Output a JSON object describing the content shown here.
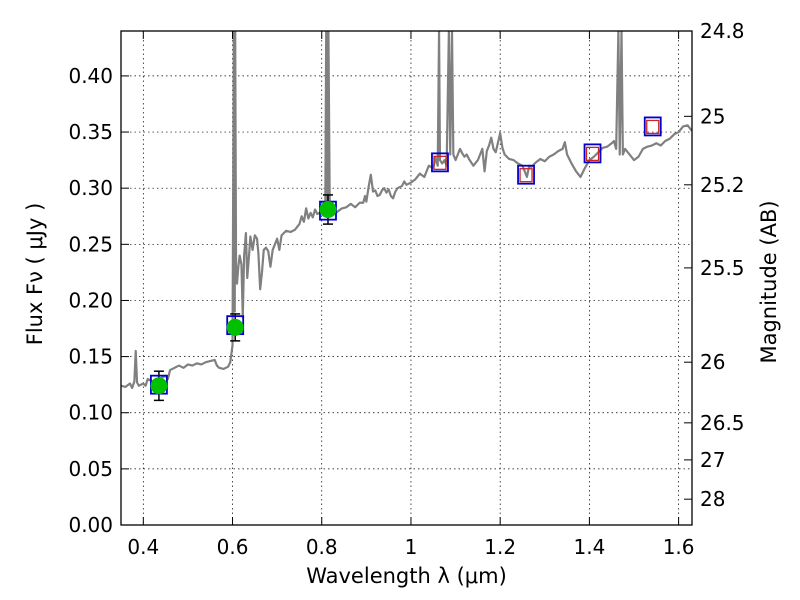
{
  "chart_data": {
    "type": "line",
    "xlabel": "Wavelength  λ (μm)",
    "ylabel": "Flux  Fν  ( μJy )",
    "y2label": "Magnitude (AB)",
    "xlim": [
      0.35,
      1.63
    ],
    "ylim": [
      0.0,
      0.44
    ],
    "x_ticks": [
      0.4,
      0.6,
      0.8,
      1.0,
      1.2,
      1.4,
      1.6
    ],
    "x_tick_labels": [
      "0.4",
      "0.6",
      "0.8",
      "1",
      "1.2",
      "1.4",
      "1.6"
    ],
    "y_ticks": [
      0.0,
      0.05,
      0.1,
      0.15,
      0.2,
      0.25,
      0.3,
      0.35,
      0.4
    ],
    "y_tick_labels": [
      "0.00",
      "0.05",
      "0.10",
      "0.15",
      "0.20",
      "0.25",
      "0.30",
      "0.35",
      "0.40"
    ],
    "y2_ticks": [
      {
        "label": "24.8",
        "flux": 0.44
      },
      {
        "label": "25",
        "flux": 0.364
      },
      {
        "label": "25.2",
        "flux": 0.303
      },
      {
        "label": "25.5",
        "flux": 0.229
      },
      {
        "label": "26",
        "flux": 0.145
      },
      {
        "label": "26.5",
        "flux": 0.091
      },
      {
        "label": "27",
        "flux": 0.058
      },
      {
        "label": "28",
        "flux": 0.023
      }
    ],
    "grid": true,
    "colors": {
      "spectrum": "#808080",
      "measured": "#00c000",
      "model_box": "#0000cc",
      "model_box_inner": "#cc2222",
      "errorbar": "#000000"
    },
    "series": [
      {
        "kind": "line",
        "points": [
          [
            0.35,
            0.124
          ],
          [
            0.36,
            0.123
          ],
          [
            0.37,
            0.126
          ],
          [
            0.375,
            0.122
          ],
          [
            0.38,
            0.128
          ],
          [
            0.383,
            0.155
          ],
          [
            0.386,
            0.127
          ],
          [
            0.39,
            0.124
          ],
          [
            0.4,
            0.126
          ],
          [
            0.405,
            0.124
          ],
          [
            0.41,
            0.13
          ],
          [
            0.42,
            0.128
          ],
          [
            0.43,
            0.129
          ],
          [
            0.44,
            0.131
          ],
          [
            0.45,
            0.133
          ],
          [
            0.455,
            0.13
          ],
          [
            0.46,
            0.138
          ],
          [
            0.47,
            0.14
          ],
          [
            0.48,
            0.142
          ],
          [
            0.49,
            0.14
          ],
          [
            0.5,
            0.143
          ],
          [
            0.51,
            0.142
          ],
          [
            0.52,
            0.144
          ],
          [
            0.53,
            0.143
          ],
          [
            0.54,
            0.145
          ],
          [
            0.55,
            0.146
          ],
          [
            0.56,
            0.147
          ],
          [
            0.565,
            0.142
          ],
          [
            0.57,
            0.14
          ],
          [
            0.58,
            0.139
          ],
          [
            0.59,
            0.141
          ],
          [
            0.595,
            0.145
          ],
          [
            0.6,
            0.16
          ],
          [
            0.603,
            0.44
          ],
          [
            0.605,
            0.19
          ],
          [
            0.606,
            0.44
          ],
          [
            0.608,
            0.22
          ],
          [
            0.61,
            0.215
          ],
          [
            0.613,
            0.23
          ],
          [
            0.616,
            0.24
          ],
          [
            0.62,
            0.232
          ],
          [
            0.623,
            0.185
          ],
          [
            0.626,
            0.24
          ],
          [
            0.63,
            0.26
          ],
          [
            0.633,
            0.22
          ],
          [
            0.637,
            0.24
          ],
          [
            0.64,
            0.257
          ],
          [
            0.645,
            0.245
          ],
          [
            0.65,
            0.258
          ],
          [
            0.655,
            0.255
          ],
          [
            0.658,
            0.242
          ],
          [
            0.662,
            0.21
          ],
          [
            0.666,
            0.225
          ],
          [
            0.67,
            0.245
          ],
          [
            0.675,
            0.247
          ],
          [
            0.68,
            0.244
          ],
          [
            0.685,
            0.23
          ],
          [
            0.69,
            0.245
          ],
          [
            0.695,
            0.25
          ],
          [
            0.7,
            0.255
          ],
          [
            0.705,
            0.245
          ],
          [
            0.71,
            0.258
          ],
          [
            0.72,
            0.262
          ],
          [
            0.73,
            0.261
          ],
          [
            0.74,
            0.263
          ],
          [
            0.75,
            0.268
          ],
          [
            0.755,
            0.275
          ],
          [
            0.76,
            0.27
          ],
          [
            0.765,
            0.282
          ],
          [
            0.77,
            0.273
          ],
          [
            0.775,
            0.278
          ],
          [
            0.78,
            0.274
          ],
          [
            0.785,
            0.281
          ],
          [
            0.79,
            0.277
          ],
          [
            0.8,
            0.279
          ],
          [
            0.805,
            0.284
          ],
          [
            0.808,
            0.283
          ],
          [
            0.81,
            0.44
          ],
          [
            0.813,
            0.283
          ],
          [
            0.815,
            0.44
          ],
          [
            0.818,
            0.28
          ],
          [
            0.825,
            0.276
          ],
          [
            0.835,
            0.279
          ],
          [
            0.845,
            0.282
          ],
          [
            0.855,
            0.283
          ],
          [
            0.865,
            0.286
          ],
          [
            0.875,
            0.283
          ],
          [
            0.885,
            0.287
          ],
          [
            0.893,
            0.287
          ],
          [
            0.897,
            0.293
          ],
          [
            0.9,
            0.288
          ],
          [
            0.905,
            0.301
          ],
          [
            0.91,
            0.312
          ],
          [
            0.915,
            0.297
          ],
          [
            0.92,
            0.298
          ],
          [
            0.925,
            0.293
          ],
          [
            0.93,
            0.294
          ],
          [
            0.935,
            0.298
          ],
          [
            0.94,
            0.3
          ],
          [
            0.945,
            0.296
          ],
          [
            0.95,
            0.299
          ],
          [
            0.955,
            0.293
          ],
          [
            0.96,
            0.291
          ],
          [
            0.965,
            0.297
          ],
          [
            0.97,
            0.3
          ],
          [
            0.98,
            0.302
          ],
          [
            0.985,
            0.306
          ],
          [
            0.99,
            0.303
          ],
          [
            1.0,
            0.305
          ],
          [
            1.01,
            0.308
          ],
          [
            1.02,
            0.313
          ],
          [
            1.03,
            0.31
          ],
          [
            1.04,
            0.32
          ],
          [
            1.05,
            0.318
          ],
          [
            1.055,
            0.327
          ],
          [
            1.06,
            0.32
          ],
          [
            1.063,
            0.44
          ],
          [
            1.065,
            0.325
          ],
          [
            1.07,
            0.322
          ],
          [
            1.075,
            0.325
          ],
          [
            1.08,
            0.32
          ],
          [
            1.085,
            0.44
          ],
          [
            1.088,
            0.33
          ],
          [
            1.092,
            0.44
          ],
          [
            1.095,
            0.33
          ],
          [
            1.1,
            0.325
          ],
          [
            1.105,
            0.33
          ],
          [
            1.11,
            0.335
          ],
          [
            1.115,
            0.331
          ],
          [
            1.12,
            0.328
          ],
          [
            1.125,
            0.33
          ],
          [
            1.13,
            0.326
          ],
          [
            1.14,
            0.32
          ],
          [
            1.15,
            0.325
          ],
          [
            1.155,
            0.33
          ],
          [
            1.16,
            0.335
          ],
          [
            1.165,
            0.315
          ],
          [
            1.17,
            0.333
          ],
          [
            1.175,
            0.338
          ],
          [
            1.18,
            0.345
          ],
          [
            1.185,
            0.335
          ],
          [
            1.19,
            0.332
          ],
          [
            1.2,
            0.349
          ],
          [
            1.205,
            0.336
          ],
          [
            1.21,
            0.33
          ],
          [
            1.22,
            0.326
          ],
          [
            1.23,
            0.325
          ],
          [
            1.24,
            0.322
          ],
          [
            1.25,
            0.32
          ],
          [
            1.26,
            0.31
          ],
          [
            1.265,
            0.32
          ],
          [
            1.27,
            0.319
          ],
          [
            1.28,
            0.323
          ],
          [
            1.29,
            0.326
          ],
          [
            1.3,
            0.324
          ],
          [
            1.31,
            0.328
          ],
          [
            1.32,
            0.33
          ],
          [
            1.33,
            0.333
          ],
          [
            1.34,
            0.335
          ],
          [
            1.345,
            0.341
          ],
          [
            1.35,
            0.33
          ],
          [
            1.36,
            0.322
          ],
          [
            1.37,
            0.315
          ],
          [
            1.38,
            0.31
          ],
          [
            1.39,
            0.318
          ],
          [
            1.4,
            0.325
          ],
          [
            1.41,
            0.328
          ],
          [
            1.42,
            0.332
          ],
          [
            1.43,
            0.336
          ],
          [
            1.44,
            0.337
          ],
          [
            1.45,
            0.34
          ],
          [
            1.455,
            0.342
          ],
          [
            1.46,
            0.335
          ],
          [
            1.465,
            0.44
          ],
          [
            1.468,
            0.33
          ],
          [
            1.472,
            0.44
          ],
          [
            1.475,
            0.33
          ],
          [
            1.48,
            0.335
          ],
          [
            1.49,
            0.33
          ],
          [
            1.5,
            0.325
          ],
          [
            1.51,
            0.328
          ],
          [
            1.52,
            0.335
          ],
          [
            1.53,
            0.337
          ],
          [
            1.54,
            0.338
          ],
          [
            1.55,
            0.34
          ],
          [
            1.56,
            0.338
          ],
          [
            1.57,
            0.342
          ],
          [
            1.58,
            0.344
          ],
          [
            1.59,
            0.348
          ],
          [
            1.6,
            0.35
          ],
          [
            1.61,
            0.355
          ],
          [
            1.62,
            0.356
          ],
          [
            1.63,
            0.351
          ]
        ]
      },
      {
        "kind": "photometry",
        "points": [
          {
            "x": 0.435,
            "y": 0.124,
            "yerr": 0.013
          },
          {
            "x": 0.606,
            "y": 0.176,
            "yerr": 0.012
          },
          {
            "x": 0.814,
            "y": 0.281,
            "yerr": 0.013
          }
        ]
      },
      {
        "kind": "model_boxes",
        "points": [
          {
            "x": 0.435,
            "y": 0.125,
            "outer_only": true
          },
          {
            "x": 0.606,
            "y": 0.178,
            "outer_only": true
          },
          {
            "x": 0.814,
            "y": 0.28,
            "outer_only": true
          },
          {
            "x": 1.065,
            "y": 0.323,
            "outer_only": false
          },
          {
            "x": 1.258,
            "y": 0.312,
            "outer_only": false
          },
          {
            "x": 1.407,
            "y": 0.331,
            "outer_only": false
          },
          {
            "x": 1.542,
            "y": 0.355,
            "outer_only": false
          }
        ]
      }
    ]
  }
}
